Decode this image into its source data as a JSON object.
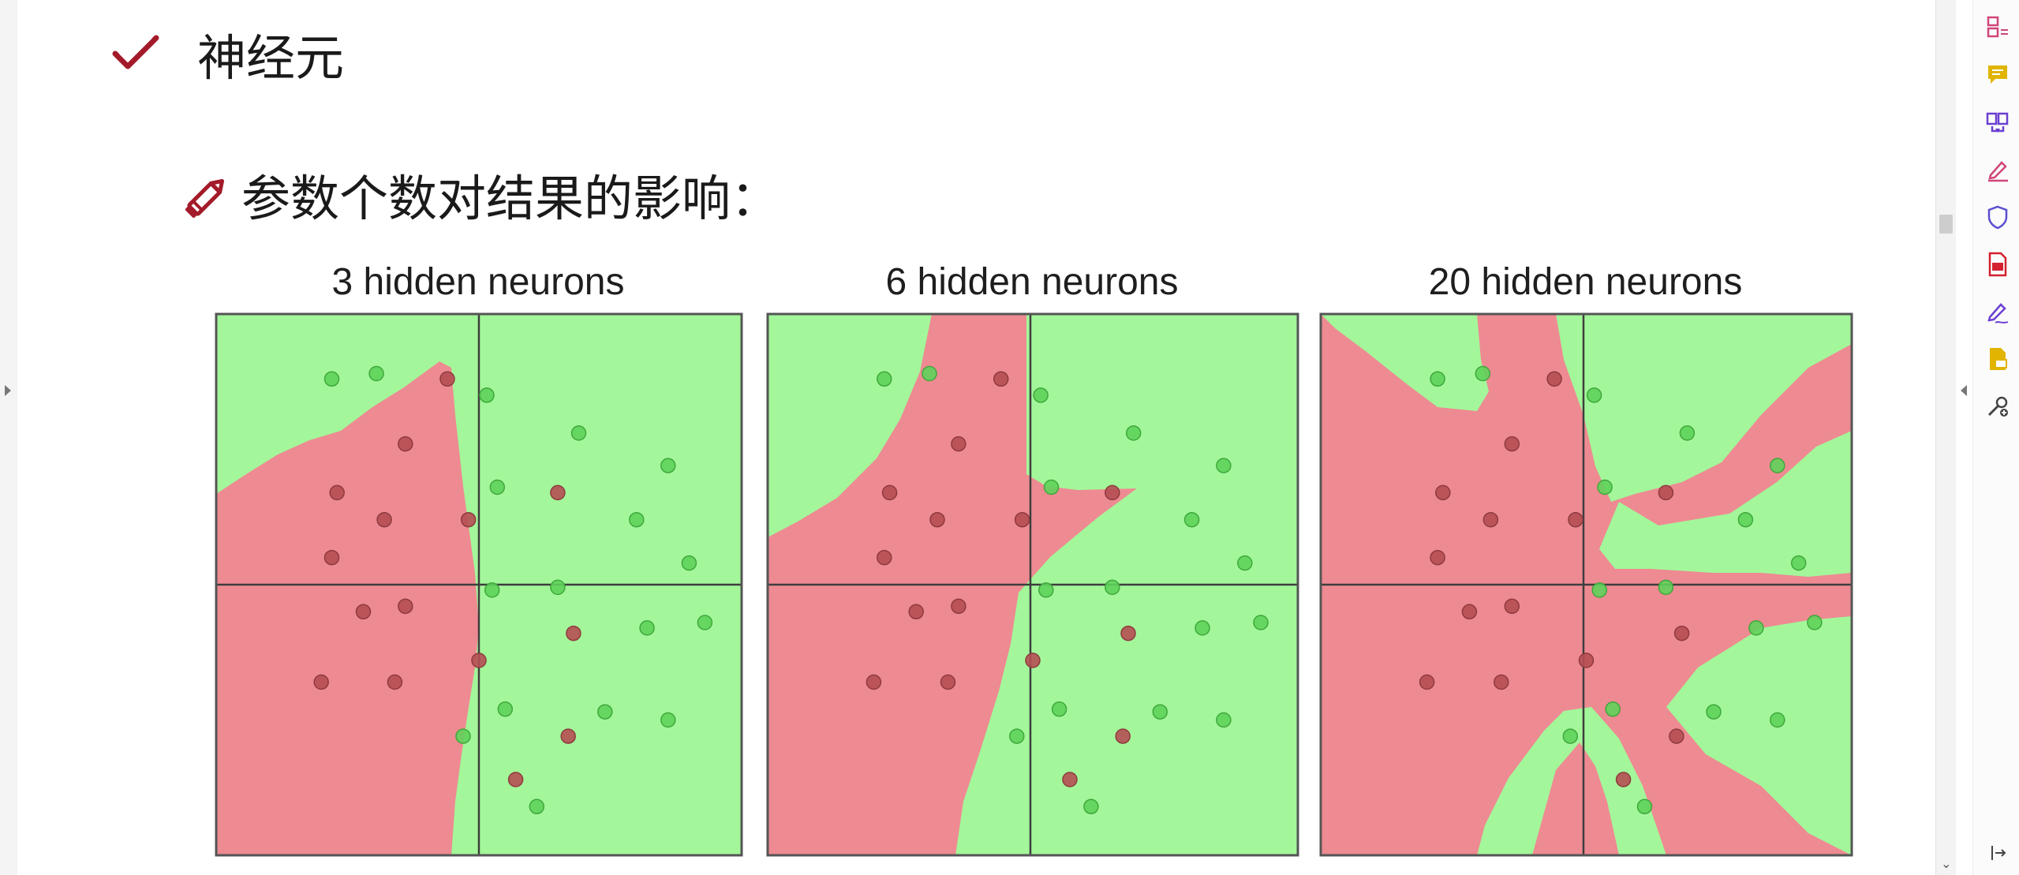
{
  "heading": "神经元",
  "subheading": "参数个数对结果的影响：",
  "icons": {
    "heading_bullet": "checkmark-icon",
    "subheading_bullet": "pencil-icon"
  },
  "colors": {
    "green_region": "#a3f79a",
    "red_region": "#ee8a92",
    "green_point": "#5ed15a",
    "red_point": "#b54e53",
    "axis_line": "#3e3e3e",
    "accent_red": "#a31b2a"
  },
  "toolbar": {
    "items": [
      {
        "name": "organize-pages-icon",
        "color": "#d0457a"
      },
      {
        "name": "comment-icon",
        "color": "#e0b400"
      },
      {
        "name": "combine-files-icon",
        "color": "#6b3fd1"
      },
      {
        "name": "fill-sign-icon",
        "color": "#d0457a"
      },
      {
        "name": "protect-icon",
        "color": "#5b4fd1"
      },
      {
        "name": "export-pdf-icon",
        "color": "#d4202f"
      },
      {
        "name": "request-signature-icon",
        "color": "#6b3fd1"
      },
      {
        "name": "send-for-review-icon",
        "color": "#e0b400"
      },
      {
        "name": "more-tools-icon",
        "color": "#444444"
      }
    ]
  },
  "chart_data": [
    {
      "type": "scatter",
      "title": "3 hidden neurons",
      "xlim": [
        -5,
        5
      ],
      "ylim": [
        -5,
        5
      ],
      "series": [
        {
          "name": "red",
          "points": [
            [
              -0.6,
              3.8
            ],
            [
              -1.4,
              2.6
            ],
            [
              -2.7,
              1.7
            ],
            [
              -1.8,
              1.2
            ],
            [
              -2.8,
              0.5
            ],
            [
              -0.2,
              1.2
            ],
            [
              1.5,
              1.7
            ],
            [
              -2.2,
              -0.5
            ],
            [
              -1.4,
              -0.4
            ],
            [
              -3.0,
              -1.8
            ],
            [
              -1.6,
              -1.8
            ],
            [
              0.0,
              -1.4
            ],
            [
              1.8,
              -0.9
            ],
            [
              1.7,
              -2.8
            ],
            [
              0.7,
              -3.6
            ]
          ]
        },
        {
          "name": "green",
          "points": [
            [
              -2.8,
              3.8
            ],
            [
              -1.95,
              3.9
            ],
            [
              0.15,
              3.5
            ],
            [
              1.9,
              2.8
            ],
            [
              3.6,
              2.2
            ],
            [
              0.35,
              1.8
            ],
            [
              3.0,
              1.2
            ],
            [
              4.0,
              0.4
            ],
            [
              0.25,
              -0.1
            ],
            [
              1.5,
              -0.05
            ],
            [
              3.2,
              -0.8
            ],
            [
              4.3,
              -0.7
            ],
            [
              0.5,
              -2.3
            ],
            [
              2.4,
              -2.35
            ],
            [
              3.6,
              -2.5
            ],
            [
              -0.3,
              -2.8
            ],
            [
              1.1,
              -4.1
            ]
          ]
        }
      ]
    },
    {
      "type": "scatter",
      "title": "6 hidden neurons",
      "xlim": [
        -5,
        5
      ],
      "ylim": [
        -5,
        5
      ],
      "series": [
        {
          "name": "red",
          "points": [
            [
              -0.6,
              3.8
            ],
            [
              -1.4,
              2.6
            ],
            [
              -2.7,
              1.7
            ],
            [
              -1.8,
              1.2
            ],
            [
              -2.8,
              0.5
            ],
            [
              -0.2,
              1.2
            ],
            [
              1.5,
              1.7
            ],
            [
              -2.2,
              -0.5
            ],
            [
              -1.4,
              -0.4
            ],
            [
              -3.0,
              -1.8
            ],
            [
              -1.6,
              -1.8
            ],
            [
              0.0,
              -1.4
            ],
            [
              1.8,
              -0.9
            ],
            [
              1.7,
              -2.8
            ],
            [
              0.7,
              -3.6
            ]
          ]
        },
        {
          "name": "green",
          "points": [
            [
              -2.8,
              3.8
            ],
            [
              -1.95,
              3.9
            ],
            [
              0.15,
              3.5
            ],
            [
              1.9,
              2.8
            ],
            [
              3.6,
              2.2
            ],
            [
              0.35,
              1.8
            ],
            [
              3.0,
              1.2
            ],
            [
              4.0,
              0.4
            ],
            [
              0.25,
              -0.1
            ],
            [
              1.5,
              -0.05
            ],
            [
              3.2,
              -0.8
            ],
            [
              4.3,
              -0.7
            ],
            [
              0.5,
              -2.3
            ],
            [
              2.4,
              -2.35
            ],
            [
              3.6,
              -2.5
            ],
            [
              -0.3,
              -2.8
            ],
            [
              1.1,
              -4.1
            ]
          ]
        }
      ]
    },
    {
      "type": "scatter",
      "title": "20 hidden neurons",
      "xlim": [
        -5,
        5
      ],
      "ylim": [
        -5,
        5
      ],
      "series": [
        {
          "name": "red",
          "points": [
            [
              -0.6,
              3.8
            ],
            [
              -1.4,
              2.6
            ],
            [
              -2.7,
              1.7
            ],
            [
              -1.8,
              1.2
            ],
            [
              -2.8,
              0.5
            ],
            [
              -0.2,
              1.2
            ],
            [
              1.5,
              1.7
            ],
            [
              -2.2,
              -0.5
            ],
            [
              -1.4,
              -0.4
            ],
            [
              -3.0,
              -1.8
            ],
            [
              -1.6,
              -1.8
            ],
            [
              0.0,
              -1.4
            ],
            [
              1.8,
              -0.9
            ],
            [
              1.7,
              -2.8
            ],
            [
              0.7,
              -3.6
            ]
          ]
        },
        {
          "name": "green",
          "points": [
            [
              -2.8,
              3.8
            ],
            [
              -1.95,
              3.9
            ],
            [
              0.15,
              3.5
            ],
            [
              1.9,
              2.8
            ],
            [
              3.6,
              2.2
            ],
            [
              0.35,
              1.8
            ],
            [
              3.0,
              1.2
            ],
            [
              4.0,
              0.4
            ],
            [
              0.25,
              -0.1
            ],
            [
              1.5,
              -0.05
            ],
            [
              3.2,
              -0.8
            ],
            [
              4.3,
              -0.7
            ],
            [
              0.5,
              -2.3
            ],
            [
              2.4,
              -2.35
            ],
            [
              3.6,
              -2.5
            ],
            [
              -0.3,
              -2.8
            ],
            [
              1.1,
              -4.1
            ]
          ]
        }
      ]
    }
  ]
}
